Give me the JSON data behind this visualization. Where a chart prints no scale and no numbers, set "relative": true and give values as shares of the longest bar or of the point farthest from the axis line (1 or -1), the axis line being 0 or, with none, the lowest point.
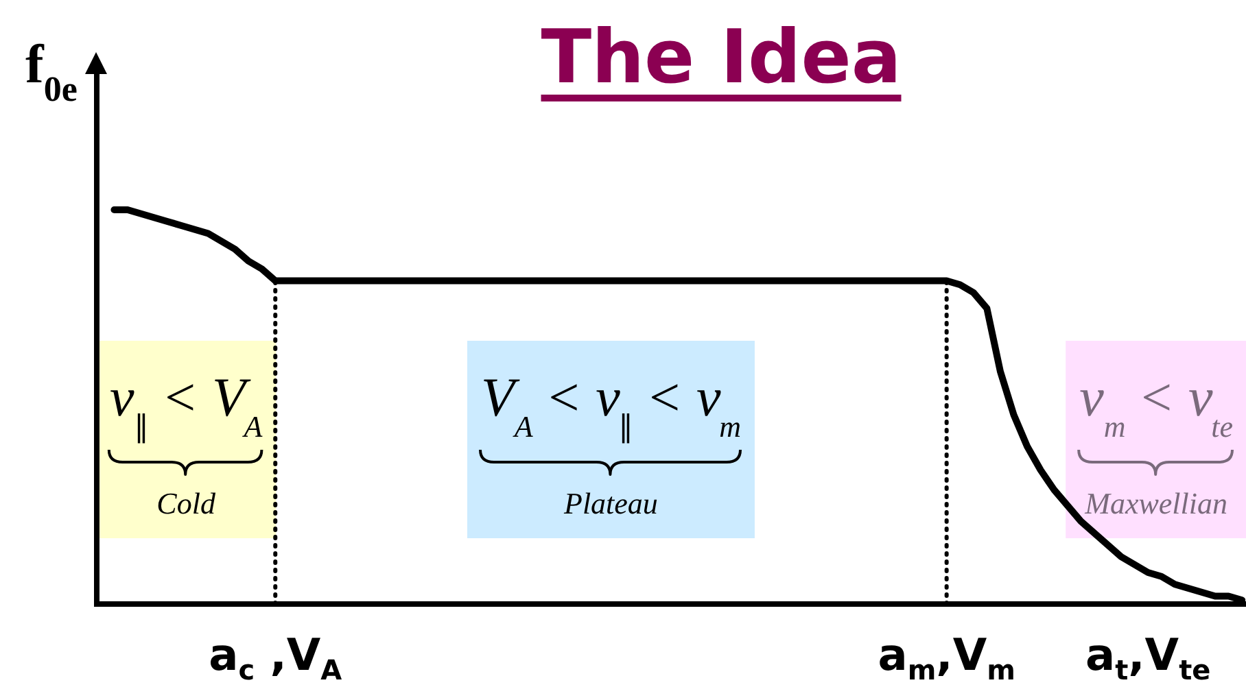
{
  "chart_data": {
    "type": "line",
    "title": "The Idea",
    "ylabel": "f$_{0e}$",
    "relative": true,
    "categories": [
      null,
      null,
      null,
      null,
      null,
      null,
      null,
      null,
      null,
      null,
      null,
      null,
      "a$_{c}$ ,V$_{A}$",
      null,
      null,
      null,
      null,
      null,
      null,
      null,
      null,
      null,
      null,
      null,
      null,
      null,
      null,
      null,
      null,
      null,
      null,
      null,
      null,
      null,
      null,
      null,
      null,
      null,
      null,
      null,
      null,
      null,
      null,
      null,
      null,
      null,
      null,
      null,
      null,
      null,
      null,
      null,
      null,
      null,
      null,
      null,
      null,
      null,
      null,
      null,
      null,
      null,
      "a$_{m}$,V$_{m}$",
      null,
      null,
      null,
      null,
      null,
      null,
      null,
      null,
      null,
      null,
      null,
      null,
      null,
      null,
      "a$_{t}$,V$_{te}$",
      null,
      null,
      null,
      null,
      null,
      null,
      null
    ],
    "series": [
      {
        "color": "#000000",
        "values": [
          1.0,
          1.0,
          0.99,
          0.98,
          0.97,
          0.96,
          0.95,
          0.94,
          0.92,
          0.9,
          0.87,
          0.85,
          0.82,
          0.82,
          0.82,
          0.82,
          0.82,
          0.82,
          0.82,
          0.82,
          0.82,
          0.82,
          0.82,
          0.82,
          0.82,
          0.82,
          0.82,
          0.82,
          0.82,
          0.82,
          0.82,
          0.82,
          0.82,
          0.82,
          0.82,
          0.82,
          0.82,
          0.82,
          0.82,
          0.82,
          0.82,
          0.82,
          0.82,
          0.82,
          0.82,
          0.82,
          0.82,
          0.82,
          0.82,
          0.82,
          0.82,
          0.82,
          0.82,
          0.82,
          0.82,
          0.82,
          0.82,
          0.82,
          0.82,
          0.82,
          0.82,
          0.82,
          0.82,
          0.81,
          0.79,
          0.75,
          0.59,
          0.48,
          0.4,
          0.34,
          0.29,
          0.25,
          0.21,
          0.18,
          0.15,
          0.12,
          0.1,
          0.08,
          0.07,
          0.05,
          0.04,
          0.03,
          0.02,
          0.02,
          0.01
        ]
      }
    ],
    "ref_lines": [
      {
        "axis": "x",
        "value": "a$_{c}$ ,V$_{A}$",
        "line_style": "dotted",
        "color": "#000000"
      },
      {
        "axis": "x",
        "value": "a$_{m}$,V$_{m}$",
        "line_style": "dotted",
        "color": "#000000"
      }
    ],
    "annotations": [
      "v$_{∥}$ < V$_{A}$\nCold",
      "V$_{A}$ < v$_{∥}$ < v$_{m}$\nPlateau",
      "v$_{m}$ < v$_{te}$\nMaxwellian"
    ]
  }
}
